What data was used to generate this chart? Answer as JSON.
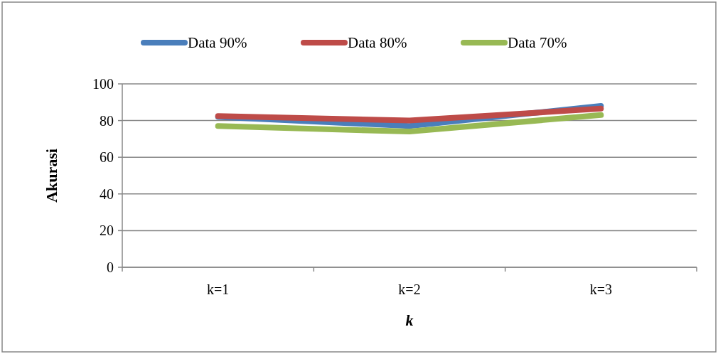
{
  "chart_data": {
    "type": "line",
    "xlabel": "k",
    "ylabel": "Akurasi",
    "categories": [
      "k=1",
      "k=2",
      "k=3"
    ],
    "series": [
      {
        "name": "Data 90%",
        "color": "#4a7ebb",
        "values": [
          82,
          77,
          88
        ]
      },
      {
        "name": "Data 80%",
        "color": "#be4b48",
        "values": [
          82.5,
          80,
          86.5
        ]
      },
      {
        "name": "Data 70%",
        "color": "#98b954",
        "values": [
          77,
          74,
          83
        ]
      }
    ],
    "ylim": [
      0,
      100
    ],
    "yticks": [
      0,
      20,
      40,
      60,
      80,
      100
    ],
    "grid": "y",
    "legend": "top",
    "marker": "none",
    "line_style": "solid"
  }
}
